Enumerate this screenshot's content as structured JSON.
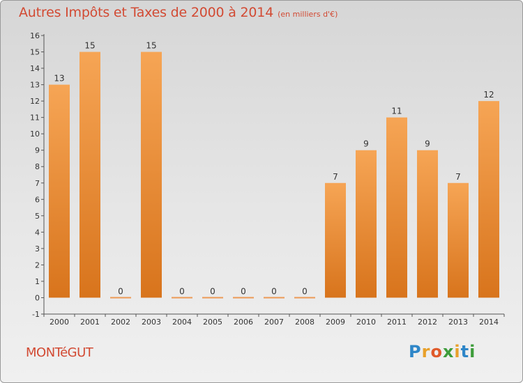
{
  "title": "Autres Impôts et Taxes de 2000 à 2014",
  "unit_note": "(en milliers d'€)",
  "commune": "MONTéGUT",
  "logo": {
    "letters": [
      "P",
      "r",
      "o",
      "x",
      "i",
      "t",
      "i"
    ],
    "colors": [
      "#2e86c8",
      "#e8a02a",
      "#e05a2a",
      "#3d9c3a",
      "#e8a02a",
      "#2e86c8",
      "#3d9c3a"
    ]
  },
  "colors": {
    "bar": "#ec8c3a",
    "title": "#d24a33"
  },
  "chart_data": {
    "type": "bar",
    "title": "Autres Impôts et Taxes de 2000 à 2014",
    "categories": [
      "2000",
      "2001",
      "2002",
      "2003",
      "2004",
      "2005",
      "2006",
      "2007",
      "2008",
      "2009",
      "2010",
      "2011",
      "2012",
      "2013",
      "2014"
    ],
    "values": [
      13,
      15,
      0,
      15,
      0,
      0,
      0,
      0,
      0,
      7,
      9,
      11,
      9,
      7,
      12
    ],
    "data_labels": [
      "13",
      "15",
      "0",
      "15",
      "0",
      "0",
      "0",
      "0",
      "0",
      "7",
      "9",
      "11",
      "9",
      "7",
      "12"
    ],
    "yticks": [
      -1,
      0,
      1,
      2,
      3,
      4,
      5,
      6,
      7,
      8,
      9,
      10,
      11,
      12,
      13,
      14,
      15,
      16
    ],
    "ylim": [
      -1,
      16
    ],
    "xlabel": "",
    "ylabel": "",
    "grid": false
  }
}
